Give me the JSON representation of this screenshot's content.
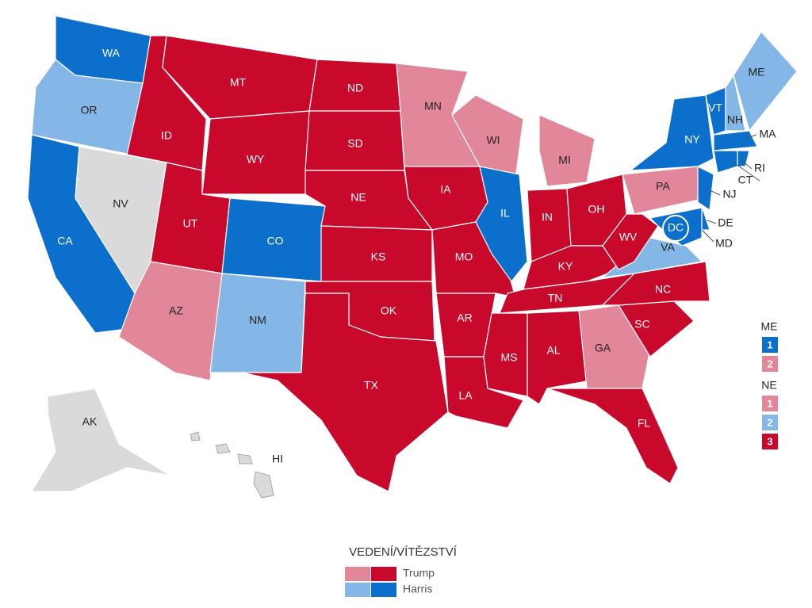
{
  "map": {
    "states": [
      {
        "label": "WA",
        "color": "#0b6fcb"
      },
      {
        "label": "OR",
        "color": "#84b7e6"
      },
      {
        "label": "CA",
        "color": "#0b6fcb"
      },
      {
        "label": "NV",
        "color": "#dadada"
      },
      {
        "label": "ID",
        "color": "#c8092c"
      },
      {
        "label": "MT",
        "color": "#c8092c"
      },
      {
        "label": "WY",
        "color": "#c8092c"
      },
      {
        "label": "UT",
        "color": "#c8092c"
      },
      {
        "label": "CO",
        "color": "#0b6fcb"
      },
      {
        "label": "AZ",
        "color": "#e2879a"
      },
      {
        "label": "NM",
        "color": "#84b7e6"
      },
      {
        "label": "ND",
        "color": "#c8092c"
      },
      {
        "label": "SD",
        "color": "#c8092c"
      },
      {
        "label": "NE",
        "color": "#c8092c"
      },
      {
        "label": "KS",
        "color": "#c8092c"
      },
      {
        "label": "OK",
        "color": "#c8092c"
      },
      {
        "label": "TX",
        "color": "#c8092c"
      },
      {
        "label": "MN",
        "color": "#e2879a"
      },
      {
        "label": "IA",
        "color": "#c8092c"
      },
      {
        "label": "MO",
        "color": "#c8092c"
      },
      {
        "label": "AR",
        "color": "#c8092c"
      },
      {
        "label": "LA",
        "color": "#c8092c"
      },
      {
        "label": "WI",
        "color": "#e2879a"
      },
      {
        "label": "IL",
        "color": "#0b6fcb"
      },
      {
        "label": "MI",
        "color": "#e2879a"
      },
      {
        "label": "IN",
        "color": "#c8092c"
      },
      {
        "label": "OH",
        "color": "#c8092c"
      },
      {
        "label": "KY",
        "color": "#c8092c"
      },
      {
        "label": "TN",
        "color": "#c8092c"
      },
      {
        "label": "MS",
        "color": "#c8092c"
      },
      {
        "label": "AL",
        "color": "#c8092c"
      },
      {
        "label": "GA",
        "color": "#e2879a"
      },
      {
        "label": "FL",
        "color": "#c8092c"
      },
      {
        "label": "SC",
        "color": "#c8092c"
      },
      {
        "label": "NC",
        "color": "#c8092c"
      },
      {
        "label": "VA",
        "color": "#84b7e6"
      },
      {
        "label": "WV",
        "color": "#c8092c"
      },
      {
        "label": "PA",
        "color": "#e2879a"
      },
      {
        "label": "NY",
        "color": "#0b6fcb"
      },
      {
        "label": "NJ",
        "color": "#0b6fcb"
      },
      {
        "label": "DE",
        "color": "#0b6fcb"
      },
      {
        "label": "MD",
        "color": "#0b6fcb"
      },
      {
        "label": "VT",
        "color": "#0b6fcb"
      },
      {
        "label": "NH",
        "color": "#84b7e6"
      },
      {
        "label": "ME",
        "color": "#84b7e6"
      },
      {
        "label": "MA",
        "color": "#0b6fcb"
      },
      {
        "label": "CT",
        "color": "#0b6fcb"
      },
      {
        "label": "RI",
        "color": "#0b6fcb"
      },
      {
        "label": "AK",
        "color": "#dadada"
      },
      {
        "label": "HI",
        "color": "#dadada"
      },
      {
        "label": "DC",
        "color": "#0b6fcb"
      }
    ],
    "districts": [
      {
        "state": "ME",
        "items": [
          {
            "label": "1",
            "color": "#0b6fcb"
          },
          {
            "label": "2",
            "color": "#e2879a"
          }
        ]
      },
      {
        "state": "NE",
        "items": [
          {
            "label": "1",
            "color": "#e2879a"
          },
          {
            "label": "2",
            "color": "#84b7e6"
          },
          {
            "label": "3",
            "color": "#c8092c"
          }
        ]
      }
    ],
    "legend": {
      "title": "VEDENÍ/VÍTĚZSTVÍ",
      "rows": [
        {
          "name": "Trump",
          "lead_color": "#e2879a",
          "win_color": "#c8092c"
        },
        {
          "name": "Harris",
          "lead_color": "#84b7e6",
          "win_color": "#0b6fcb"
        }
      ]
    }
  }
}
